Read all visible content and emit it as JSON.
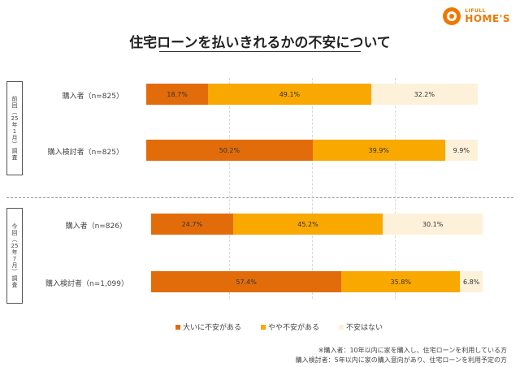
{
  "logo": {
    "small": "LIFULL",
    "big": "HOME'S"
  },
  "panels": {
    "previous": [
      "前",
      "回",
      "︵",
      "25",
      "年",
      "1",
      "月",
      "︶",
      "調",
      "査"
    ],
    "current": [
      "今",
      "回",
      "︵",
      "25",
      "年",
      "7",
      "月",
      "︶",
      "調",
      "査"
    ]
  },
  "legend": [
    {
      "label": "大いに不安がある",
      "color": "#e36c0a"
    },
    {
      "label": "やや不安がある",
      "color": "#f9a800"
    },
    {
      "label": "不安はない",
      "color": "#fdf1da"
    }
  ],
  "notes": {
    "line1": "※購入者：10年以内に家を購入し、住宅ローンを利用している方",
    "line2": "購入検討者：5年以内に家の購入意向があり、住宅ローンを利用予定の方"
  },
  "colors": {
    "high": "#e36c0a",
    "medium": "#f9a800",
    "none": "#fdf1da",
    "brand": "#ee7800"
  },
  "chart_data": {
    "type": "bar",
    "orientation": "horizontal",
    "stacked": true,
    "percent_stacked": true,
    "title": "住宅ローンを払いきれるかの不安について",
    "categories": [
      "購入者（n=825）",
      "購入検討者（n=825）",
      "購入者（n=826）",
      "購入検討者（n=1,099）"
    ],
    "groups": [
      {
        "label": "前回（25年1月）調査",
        "categories": [
          "購入者（n=825）",
          "購入検討者（n=825）"
        ]
      },
      {
        "label": "今回（25年7月）調査",
        "categories": [
          "購入者（n=826）",
          "購入検討者（n=1,099）"
        ]
      }
    ],
    "series": [
      {
        "name": "大いに不安がある",
        "values": [
          18.7,
          50.2,
          24.7,
          57.4
        ],
        "labels": [
          "18.7%",
          "50.2%",
          "24.7%",
          "57.4%"
        ]
      },
      {
        "name": "やや不安がある",
        "values": [
          49.1,
          39.9,
          45.2,
          35.8
        ],
        "labels": [
          "49.1%",
          "39.9%",
          "45.2%",
          "35.8%"
        ]
      },
      {
        "name": "不安はない",
        "values": [
          32.2,
          9.9,
          30.1,
          6.8
        ],
        "labels": [
          "32.2%",
          "9.9%",
          "30.1%",
          "6.8%"
        ]
      }
    ],
    "legend_position": "bottom",
    "grid": true
  }
}
